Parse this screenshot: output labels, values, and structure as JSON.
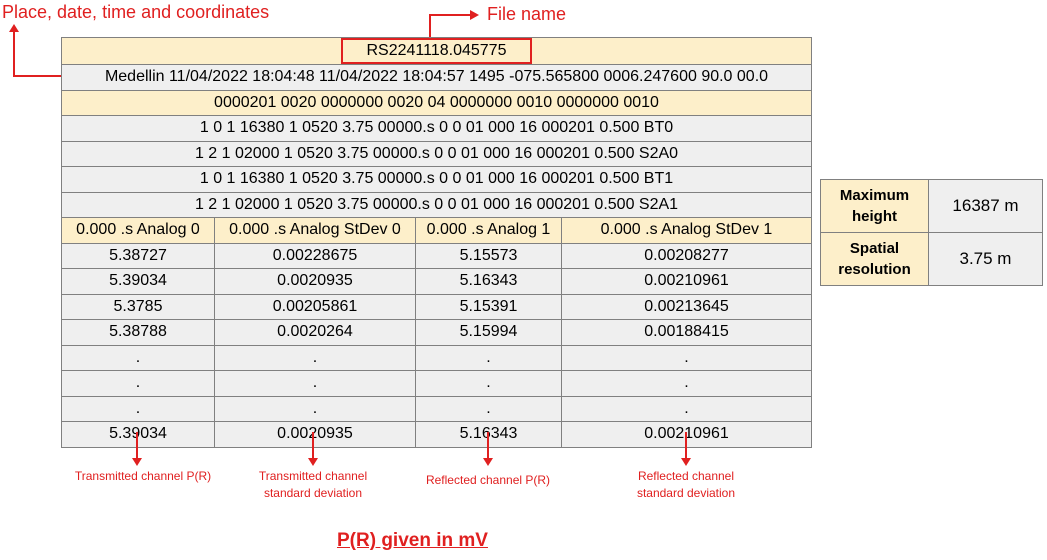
{
  "annotations": {
    "place_label": "Place, date, time and coordinates",
    "file_name_label": "File name",
    "footer": "P(R) given in mV"
  },
  "table": {
    "file_name": "RS2241118.045775",
    "rows_single": [
      {
        "text": "Medellin 11/04/2022 18:04:48 11/04/2022 18:04:57 1495 -075.565800 0006.247600 90.0 00.0",
        "style": "gray"
      },
      {
        "text": "0000201 0020 0000000 0020 04 0000000 0010 0000000 0010",
        "style": "cream"
      },
      {
        "text": "1 0 1 16380 1 0520 3.75 00000.s 0 0 01 000 16 000201 0.500 BT0",
        "style": "gray"
      },
      {
        "text": "1 2 1 02000 1 0520 3.75 00000.s 0 0 01 000 16 000201 0.500 S2A0",
        "style": "gray"
      },
      {
        "text": "1 0 1 16380 1 0520 3.75 00000.s 0 0 01 000 16 000201 0.500 BT1",
        "style": "gray"
      },
      {
        "text": "1 2 1 02000 1 0520 3.75 00000.s 0 0 01 000 16 000201 0.500 S2A1",
        "style": "gray"
      }
    ],
    "columns": [
      "0.000 .s Analog 0",
      "0.000 .s Analog StDev 0",
      "0.000 .s Analog 1",
      "0.000 .s Analog StDev 1"
    ],
    "data_rows": [
      [
        "5.38727",
        "0.00228675",
        "5.15573",
        "0.00208277"
      ],
      [
        "5.39034",
        "0.0020935",
        "5.16343",
        "0.00210961"
      ],
      [
        "5.3785",
        "0.00205861",
        "5.15391",
        "0.00213645"
      ],
      [
        "5.38788",
        "0.0020264",
        "5.15994",
        "0.00188415"
      ],
      [
        ".",
        ".",
        ".",
        "."
      ],
      [
        ".",
        ".",
        ".",
        "."
      ],
      [
        ".",
        ".",
        ".",
        "."
      ],
      [
        "5.39034",
        "0.0020935",
        "5.16343",
        "0.00210961"
      ]
    ]
  },
  "captions": [
    "Transmitted channel P(R)",
    "Transmitted channel standard deviation",
    "Reflected channel P(R)",
    "Reflected channel standard deviation"
  ],
  "side_table": [
    {
      "label": "Maximum height",
      "value": "16387 m"
    },
    {
      "label": "Spatial resolution",
      "value": "3.75 m"
    }
  ],
  "colors": {
    "accent_red": "#e02020",
    "cream": "#fdefca",
    "gray": "#efefef"
  }
}
